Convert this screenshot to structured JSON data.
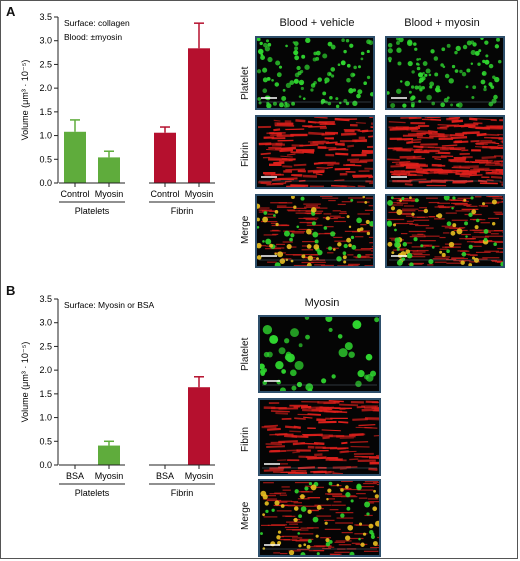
{
  "colors": {
    "platelet_bar": "#5fac3c",
    "fibrin_bar": "#b5102e",
    "platelet_stain": "#2fd62f",
    "fibrin_stain": "#e0201c",
    "merge_stain": "#e8c020",
    "frame": "#2e4f6b"
  },
  "panel_a": {
    "letter": "A",
    "chart_data": {
      "type": "bar",
      "annotations": [
        "Surface: collagen",
        "Blood: ±myosin"
      ],
      "ylabel": "Volume (μm³ · 10⁻⁵)",
      "ylim": [
        0,
        3.5
      ],
      "yticks": [
        "0.0",
        "0.5",
        "1.0",
        "1.5",
        "2.0",
        "2.5",
        "3.0",
        "3.5"
      ],
      "groups": [
        {
          "name": "Platelets",
          "categories": [
            "Control",
            "Myosin"
          ],
          "values": [
            1.08,
            0.54
          ],
          "errors": [
            0.25,
            0.13
          ]
        },
        {
          "name": "Fibrin",
          "categories": [
            "Control",
            "Myosin"
          ],
          "values": [
            1.06,
            2.84
          ],
          "errors": [
            0.12,
            0.53
          ]
        }
      ]
    },
    "columns": [
      "Blood + vehicle",
      "Blood + myosin"
    ],
    "rows": [
      "Platelet",
      "Fibrin",
      "Merge"
    ]
  },
  "panel_b": {
    "letter": "B",
    "chart_data": {
      "type": "bar",
      "annotations": [
        "Surface: Myosin or BSA"
      ],
      "ylabel": "Volume (μm³ · 10⁻⁵)",
      "ylim": [
        0,
        3.5
      ],
      "yticks": [
        "0.0",
        "0.5",
        "1.0",
        "1.5",
        "2.0",
        "2.5",
        "3.0",
        "3.5"
      ],
      "groups": [
        {
          "name": "Platelets",
          "categories": [
            "BSA",
            "Myosin"
          ],
          "values": [
            0.01,
            0.41
          ],
          "errors": [
            0.0,
            0.09
          ]
        },
        {
          "name": "Fibrin",
          "categories": [
            "BSA",
            "Myosin"
          ],
          "values": [
            0.01,
            1.64
          ],
          "errors": [
            0.0,
            0.22
          ]
        }
      ]
    },
    "columns": [
      "Myosin"
    ],
    "rows": [
      "Platelet",
      "Fibrin",
      "Merge"
    ]
  }
}
